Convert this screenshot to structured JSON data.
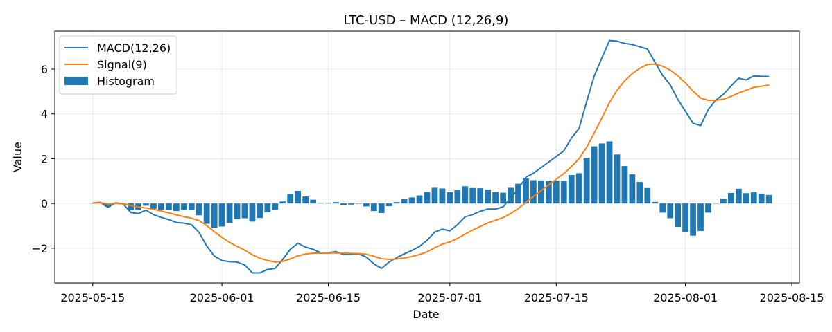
{
  "chart_data": {
    "type": "line",
    "title": "LTC-USD – MACD (12,26,9)",
    "xlabel": "Date",
    "ylabel": "Value",
    "x_ticks": [
      "2025-05-15",
      "2025-06-01",
      "2025-06-15",
      "2025-07-01",
      "2025-07-15",
      "2025-08-01",
      "2025-08-15"
    ],
    "y_ticks": [
      -2,
      0,
      2,
      4,
      6
    ],
    "xlim": [
      "2025-05-10",
      "2025-08-16"
    ],
    "ylim": [
      -3.55,
      7.7
    ],
    "grid": true,
    "legend_position": "top-left",
    "x_start": "2025-05-15",
    "series": [
      {
        "name": "MACD(12,26)",
        "type": "line",
        "color": "#1f77b4",
        "values": [
          0.02,
          0.05,
          -0.17,
          0.03,
          -0.02,
          -0.4,
          -0.45,
          -0.3,
          -0.5,
          -0.62,
          -0.72,
          -0.85,
          -0.88,
          -0.95,
          -1.3,
          -1.9,
          -2.35,
          -2.55,
          -2.6,
          -2.62,
          -2.75,
          -3.1,
          -3.1,
          -2.95,
          -2.9,
          -2.5,
          -2.05,
          -1.78,
          -1.95,
          -2.05,
          -2.2,
          -2.2,
          -2.15,
          -2.28,
          -2.28,
          -2.25,
          -2.4,
          -2.7,
          -2.9,
          -2.62,
          -2.42,
          -2.25,
          -2.1,
          -1.92,
          -1.65,
          -1.28,
          -1.15,
          -1.22,
          -0.95,
          -0.6,
          -0.5,
          -0.35,
          -0.25,
          -0.25,
          -0.15,
          0.25,
          0.65,
          1.17,
          1.35,
          1.6,
          1.85,
          2.1,
          2.35,
          2.92,
          3.35,
          4.55,
          5.7,
          6.5,
          7.28,
          7.25,
          7.15,
          7.1,
          7.0,
          6.9,
          6.3,
          5.72,
          5.3,
          4.65,
          4.12,
          3.58,
          3.48,
          4.2,
          4.62,
          4.88,
          5.25,
          5.6,
          5.52,
          5.7,
          5.68,
          5.67
        ]
      },
      {
        "name": "Signal(9)",
        "type": "line",
        "color": "#ff7f0e",
        "values": [
          0.01,
          0.03,
          -0.02,
          0.0,
          -0.02,
          -0.09,
          -0.16,
          -0.2,
          -0.26,
          -0.34,
          -0.42,
          -0.51,
          -0.59,
          -0.66,
          -0.77,
          -0.99,
          -1.26,
          -1.52,
          -1.74,
          -1.92,
          -2.09,
          -2.29,
          -2.45,
          -2.55,
          -2.62,
          -2.59,
          -2.48,
          -2.34,
          -2.26,
          -2.22,
          -2.22,
          -2.22,
          -2.21,
          -2.22,
          -2.23,
          -2.24,
          -2.27,
          -2.36,
          -2.47,
          -2.5,
          -2.48,
          -2.44,
          -2.37,
          -2.28,
          -2.16,
          -1.98,
          -1.82,
          -1.72,
          -1.56,
          -1.37,
          -1.19,
          -1.03,
          -0.87,
          -0.75,
          -0.63,
          -0.45,
          -0.23,
          0.05,
          0.31,
          0.57,
          0.83,
          1.08,
          1.34,
          1.65,
          2.0,
          2.51,
          3.15,
          3.82,
          4.51,
          5.06,
          5.48,
          5.8,
          6.04,
          6.21,
          6.23,
          6.13,
          5.96,
          5.7,
          5.39,
          5.02,
          4.71,
          4.61,
          4.61,
          4.66,
          4.78,
          4.94,
          5.06,
          5.19,
          5.24,
          5.29
        ]
      },
      {
        "name": "Histogram",
        "type": "bar",
        "color": "#1f77b4",
        "values": [
          0.01,
          0.02,
          -0.15,
          0.03,
          0.0,
          -0.31,
          -0.29,
          -0.1,
          -0.24,
          -0.28,
          -0.3,
          -0.34,
          -0.29,
          -0.29,
          -0.53,
          -0.91,
          -1.09,
          -1.03,
          -0.86,
          -0.7,
          -0.66,
          -0.81,
          -0.65,
          -0.4,
          -0.28,
          0.09,
          0.43,
          0.56,
          0.31,
          0.17,
          0.02,
          0.02,
          0.06,
          -0.06,
          -0.05,
          -0.01,
          -0.13,
          -0.34,
          -0.43,
          -0.12,
          0.06,
          0.19,
          0.27,
          0.36,
          0.51,
          0.7,
          0.67,
          0.5,
          0.61,
          0.77,
          0.69,
          0.68,
          0.62,
          0.5,
          0.48,
          0.7,
          0.88,
          1.12,
          1.04,
          1.03,
          1.02,
          1.02,
          1.01,
          1.27,
          1.35,
          2.04,
          2.55,
          2.68,
          2.77,
          2.19,
          1.67,
          1.3,
          0.96,
          0.69,
          0.07,
          -0.41,
          -0.66,
          -1.05,
          -1.27,
          -1.44,
          -1.23,
          -0.41,
          0.01,
          0.22,
          0.47,
          0.66,
          0.46,
          0.51,
          0.44,
          0.38
        ]
      }
    ]
  }
}
